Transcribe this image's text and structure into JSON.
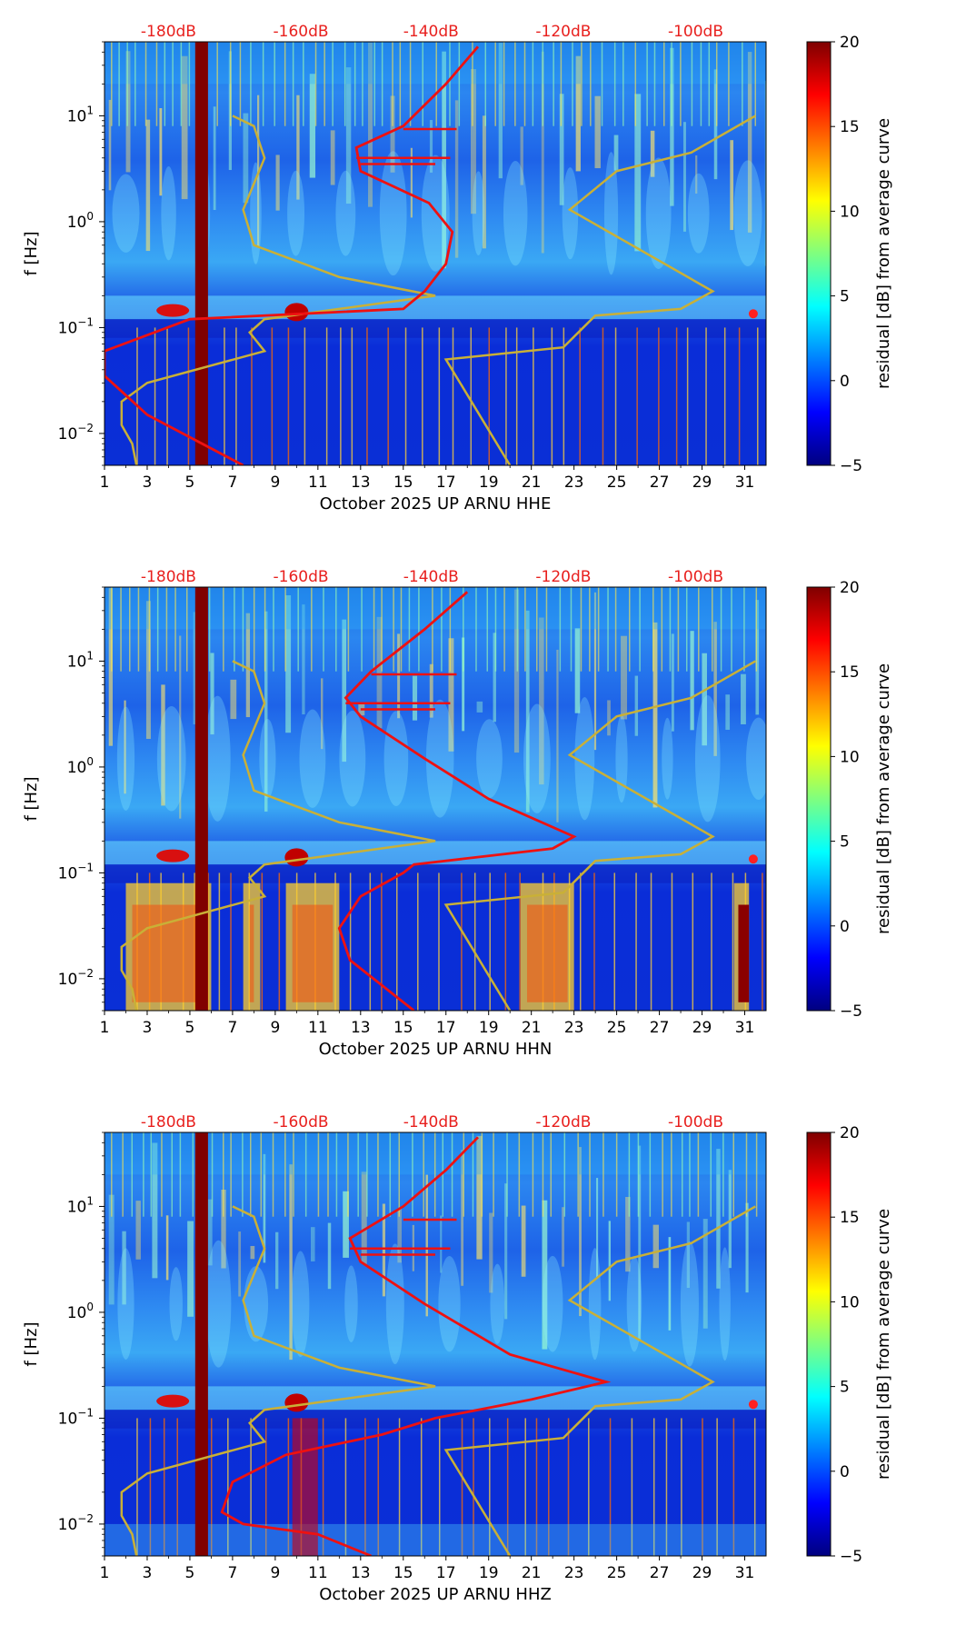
{
  "chart_data": [
    {
      "type": "heatmap",
      "channel": "HHE",
      "xlabel": "October 2025 UP ARNU  HHE",
      "ylabel": "f [Hz]",
      "colorbar_label": "residual [dB] from average curve",
      "x_ticks": [
        "1",
        "3",
        "5",
        "7",
        "9",
        "11",
        "13",
        "15",
        "17",
        "19",
        "21",
        "23",
        "25",
        "27",
        "29",
        "31"
      ],
      "y_ticks": [
        {
          "value": 0.01,
          "base": "10",
          "exp": "−2"
        },
        {
          "value": 0.1,
          "base": "10",
          "exp": "−1"
        },
        {
          "value": 1,
          "base": "10",
          "exp": "0"
        },
        {
          "value": 10,
          "base": "10",
          "exp": "1"
        }
      ],
      "top_ticks": [
        "-180dB",
        "-160dB",
        "-140dB",
        "-120dB",
        "-100dB"
      ],
      "colorbar_ticks": [
        "20",
        "15",
        "10",
        "5",
        "0",
        "−5"
      ],
      "xlim": [
        1,
        32
      ],
      "ylim": [
        0.005,
        50
      ],
      "clim": [
        -5,
        20
      ],
      "yellow_curve": [
        [
          2.5,
          0.005
        ],
        [
          2.3,
          0.008
        ],
        [
          1.8,
          0.012
        ],
        [
          1.8,
          0.02
        ],
        [
          3,
          0.03
        ],
        [
          8.5,
          0.06
        ],
        [
          7.8,
          0.09
        ],
        [
          8.5,
          0.12
        ],
        [
          12,
          0.15
        ],
        [
          16.5,
          0.2
        ],
        [
          12,
          0.3
        ],
        [
          8,
          0.6
        ],
        [
          7.5,
          1.3
        ],
        [
          8.5,
          4
        ],
        [
          8,
          8
        ],
        [
          7,
          10
        ]
      ],
      "yellow_curve2": [
        [
          20,
          0.005
        ],
        [
          17,
          0.05
        ],
        [
          22.5,
          0.065
        ],
        [
          24,
          0.13
        ],
        [
          28,
          0.15
        ],
        [
          29.5,
          0.22
        ],
        [
          22.8,
          1.3
        ],
        [
          25,
          3
        ],
        [
          28.5,
          4.5
        ],
        [
          31.5,
          10
        ]
      ],
      "red_curve": [
        [
          7.5,
          0.005
        ],
        [
          3,
          0.015
        ],
        [
          1,
          0.035
        ],
        [
          1,
          0.06
        ],
        [
          5,
          0.12
        ],
        [
          15,
          0.15
        ],
        [
          16,
          0.22
        ],
        [
          17,
          0.4
        ],
        [
          17.3,
          0.8
        ],
        [
          16.2,
          1.5
        ],
        [
          13,
          3
        ],
        [
          12.8,
          5
        ],
        [
          15,
          8
        ],
        [
          17,
          20
        ],
        [
          18.5,
          45
        ]
      ]
    },
    {
      "type": "heatmap",
      "channel": "HHN",
      "xlabel": "October 2025 UP ARNU  HHN",
      "ylabel": "f [Hz]",
      "colorbar_label": "residual [dB] from average curve",
      "x_ticks": [
        "1",
        "3",
        "5",
        "7",
        "9",
        "11",
        "13",
        "15",
        "17",
        "19",
        "21",
        "23",
        "25",
        "27",
        "29",
        "31"
      ],
      "y_ticks": [
        {
          "value": 0.01,
          "base": "10",
          "exp": "−2"
        },
        {
          "value": 0.1,
          "base": "10",
          "exp": "−1"
        },
        {
          "value": 1,
          "base": "10",
          "exp": "0"
        },
        {
          "value": 10,
          "base": "10",
          "exp": "1"
        }
      ],
      "top_ticks": [
        "-180dB",
        "-160dB",
        "-140dB",
        "-120dB",
        "-100dB"
      ],
      "colorbar_ticks": [
        "20",
        "15",
        "10",
        "5",
        "0",
        "−5"
      ],
      "xlim": [
        1,
        32
      ],
      "ylim": [
        0.005,
        50
      ],
      "clim": [
        -5,
        20
      ],
      "yellow_curve": [
        [
          2.5,
          0.005
        ],
        [
          2.3,
          0.008
        ],
        [
          1.8,
          0.012
        ],
        [
          1.8,
          0.02
        ],
        [
          3,
          0.03
        ],
        [
          8.5,
          0.06
        ],
        [
          7.8,
          0.09
        ],
        [
          8.5,
          0.12
        ],
        [
          12,
          0.15
        ],
        [
          16.5,
          0.2
        ],
        [
          12,
          0.3
        ],
        [
          8,
          0.6
        ],
        [
          7.5,
          1.3
        ],
        [
          8.5,
          4
        ],
        [
          8,
          8
        ],
        [
          7,
          10
        ]
      ],
      "yellow_curve2": [
        [
          20,
          0.005
        ],
        [
          17,
          0.05
        ],
        [
          22.5,
          0.065
        ],
        [
          24,
          0.13
        ],
        [
          28,
          0.15
        ],
        [
          29.5,
          0.22
        ],
        [
          22.8,
          1.3
        ],
        [
          25,
          3
        ],
        [
          28.5,
          4.5
        ],
        [
          31.5,
          10
        ]
      ],
      "red_curve": [
        [
          15.5,
          0.005
        ],
        [
          12.5,
          0.015
        ],
        [
          12,
          0.03
        ],
        [
          13,
          0.06
        ],
        [
          15,
          0.1
        ],
        [
          15.5,
          0.12
        ],
        [
          22,
          0.17
        ],
        [
          23,
          0.22
        ],
        [
          19,
          0.5
        ],
        [
          16,
          1.2
        ],
        [
          13,
          3
        ],
        [
          12.3,
          4.5
        ],
        [
          13.5,
          8
        ],
        [
          16,
          20
        ],
        [
          18,
          45
        ]
      ]
    },
    {
      "type": "heatmap",
      "channel": "HHZ",
      "xlabel": "October 2025 UP ARNU  HHZ",
      "ylabel": "f [Hz]",
      "colorbar_label": "residual [dB] from average curve",
      "x_ticks": [
        "1",
        "3",
        "5",
        "7",
        "9",
        "11",
        "13",
        "15",
        "17",
        "19",
        "21",
        "23",
        "25",
        "27",
        "29",
        "31"
      ],
      "y_ticks": [
        {
          "value": 0.01,
          "base": "10",
          "exp": "−2"
        },
        {
          "value": 0.1,
          "base": "10",
          "exp": "−1"
        },
        {
          "value": 1,
          "base": "10",
          "exp": "0"
        },
        {
          "value": 10,
          "base": "10",
          "exp": "1"
        }
      ],
      "top_ticks": [
        "-180dB",
        "-160dB",
        "-140dB",
        "-120dB",
        "-100dB"
      ],
      "colorbar_ticks": [
        "20",
        "15",
        "10",
        "5",
        "0",
        "−5"
      ],
      "xlim": [
        1,
        32
      ],
      "ylim": [
        0.005,
        50
      ],
      "clim": [
        -5,
        20
      ],
      "yellow_curve": [
        [
          2.5,
          0.005
        ],
        [
          2.3,
          0.008
        ],
        [
          1.8,
          0.012
        ],
        [
          1.8,
          0.02
        ],
        [
          3,
          0.03
        ],
        [
          8.5,
          0.06
        ],
        [
          7.8,
          0.09
        ],
        [
          8.5,
          0.12
        ],
        [
          12,
          0.15
        ],
        [
          16.5,
          0.2
        ],
        [
          12,
          0.3
        ],
        [
          8,
          0.6
        ],
        [
          7.5,
          1.3
        ],
        [
          8.5,
          4
        ],
        [
          8,
          8
        ],
        [
          7,
          10
        ]
      ],
      "yellow_curve2": [
        [
          20,
          0.005
        ],
        [
          17,
          0.05
        ],
        [
          22.5,
          0.065
        ],
        [
          24,
          0.13
        ],
        [
          28,
          0.15
        ],
        [
          29.5,
          0.22
        ],
        [
          22.8,
          1.3
        ],
        [
          25,
          3
        ],
        [
          28.5,
          4.5
        ],
        [
          31.5,
          10
        ]
      ],
      "red_curve": [
        [
          13.5,
          0.005
        ],
        [
          11,
          0.008
        ],
        [
          7.5,
          0.01
        ],
        [
          6.5,
          0.013
        ],
        [
          7,
          0.025
        ],
        [
          9.5,
          0.045
        ],
        [
          14,
          0.07
        ],
        [
          16.5,
          0.1
        ],
        [
          21,
          0.15
        ],
        [
          24.5,
          0.22
        ],
        [
          20,
          0.4
        ],
        [
          16,
          1.2
        ],
        [
          13,
          3
        ],
        [
          12.5,
          5
        ],
        [
          15,
          10
        ],
        [
          17,
          22
        ],
        [
          18.5,
          45
        ]
      ]
    }
  ],
  "colors": {
    "jet": [
      "#00007f",
      "#0000ff",
      "#007fff",
      "#00ffff",
      "#7fff7f",
      "#ffff00",
      "#ff7f00",
      "#ff0000",
      "#7f0000"
    ],
    "curve_red": "#ee1111",
    "curve_yellow": "#c9b037",
    "top_tick_red": "#e8201e",
    "outage": "#800000"
  }
}
